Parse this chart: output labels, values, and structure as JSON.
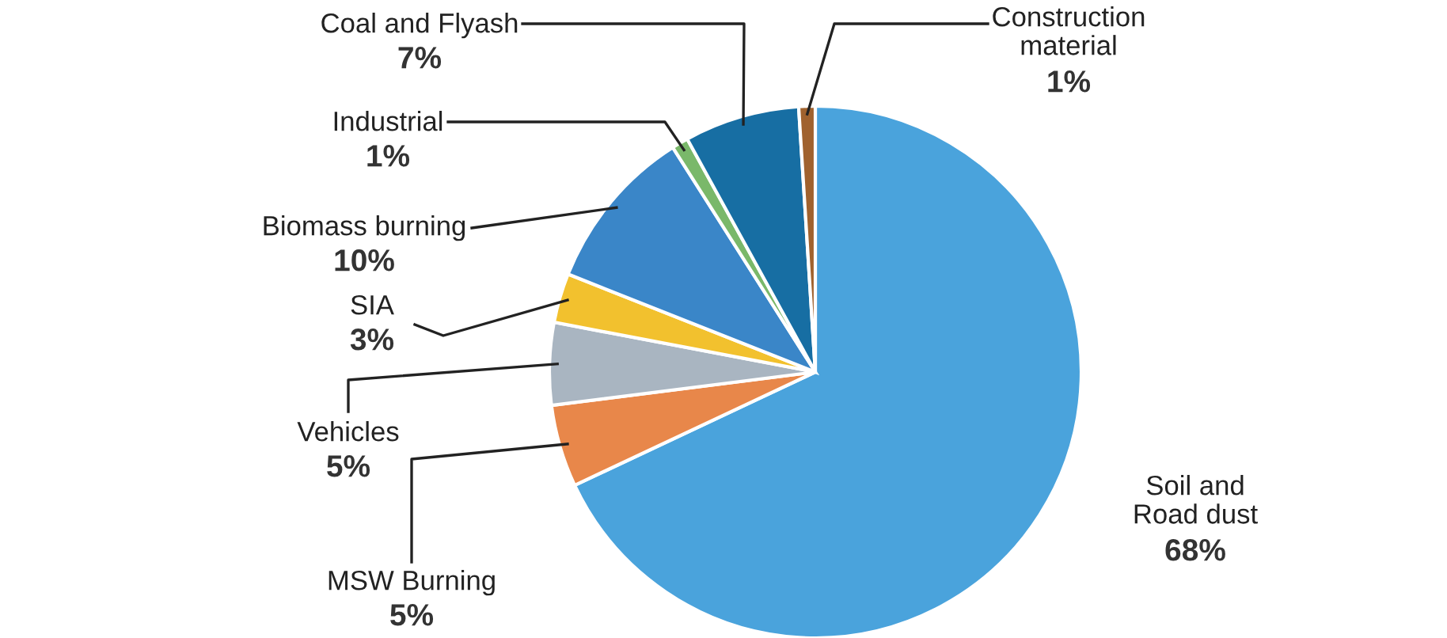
{
  "chart_data": {
    "type": "pie",
    "categories": [
      "Soil and\nRoad dust",
      "MSW Burning",
      "Vehicles",
      "SIA",
      "Biomass burning",
      "Industrial",
      "Coal and Flyash",
      "Construction\nmaterial"
    ],
    "values": [
      68,
      5,
      5,
      3,
      10,
      1,
      7,
      1
    ],
    "value_labels": [
      "68%",
      "5%",
      "5%",
      "3%",
      "10%",
      "1%",
      "7%",
      "1%"
    ],
    "colors": [
      "#4aa3dc",
      "#e8874a",
      "#a9b5c1",
      "#f2c12e",
      "#3a86c8",
      "#7ab86a",
      "#176ea3",
      "#a0622e"
    ],
    "legend": false
  }
}
